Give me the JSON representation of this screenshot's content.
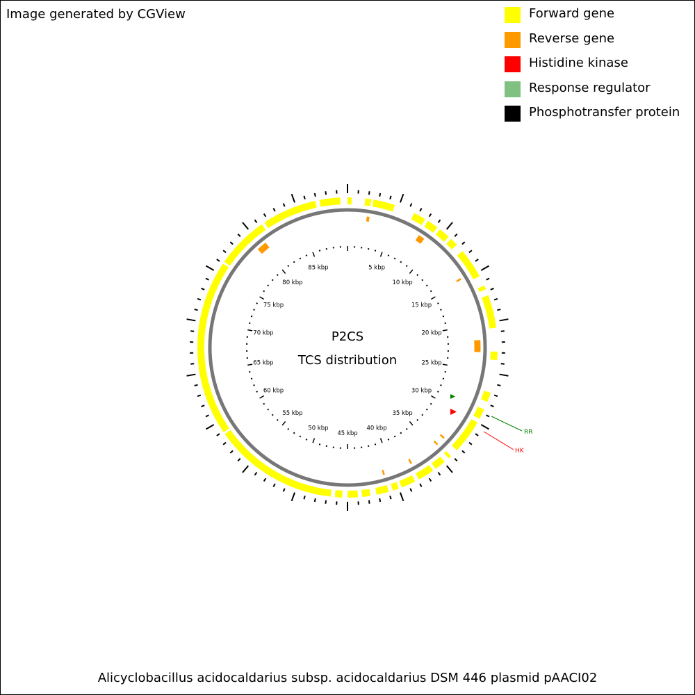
{
  "header_note": "Image generated by CGView",
  "legend": [
    {
      "label": "Forward gene",
      "color": "#ffff00"
    },
    {
      "label": "Reverse gene",
      "color": "#ff9900"
    },
    {
      "label": "Histidine kinase",
      "color": "#ff0000"
    },
    {
      "label": "Response regulator",
      "color": "#80c080"
    },
    {
      "label": "Phosphotransfer protein",
      "color": "#000000"
    }
  ],
  "center": {
    "line1": "P2CS",
    "line2": "TCS distribution"
  },
  "footer_title": "Alicyclobacillus acidocaldarius subsp. acidocaldarius DSM 446 plasmid pAACI02",
  "map": {
    "sequence_length_kbp": 90,
    "tick_labels": [
      "5 kbp",
      "10 kbp",
      "15 kbp",
      "20 kbp",
      "25 kbp",
      "30 kbp",
      "35 kbp",
      "40 kbp",
      "45 kbp",
      "50 kbp",
      "55 kbp",
      "60 kbp",
      "65 kbp",
      "70 kbp",
      "75 kbp",
      "80 kbp",
      "85 kbp"
    ],
    "forward_genes_kbp": [
      [
        0.0,
        0.4
      ],
      [
        1.7,
        2.3
      ],
      [
        2.5,
        4.6
      ],
      [
        6.6,
        7.8
      ],
      [
        8.1,
        9.2
      ],
      [
        9.5,
        10.6
      ],
      [
        10.9,
        11.7
      ],
      [
        12.5,
        15.4
      ],
      [
        16.4,
        16.8
      ],
      [
        17.4,
        20.6
      ],
      [
        22.9,
        23.7
      ],
      [
        26.9,
        27.8
      ],
      [
        28.6,
        29.6
      ],
      [
        30.0,
        33.3
      ],
      [
        34.1,
        34.4
      ],
      [
        34.9,
        36.0
      ],
      [
        36.3,
        37.9
      ],
      [
        38.3,
        39.7
      ],
      [
        40.0,
        40.6
      ],
      [
        41.0,
        42.2
      ],
      [
        42.8,
        43.6
      ],
      [
        44.0,
        45.0
      ],
      [
        45.5,
        46.2
      ],
      [
        46.6,
        58.7
      ],
      [
        58.9,
        76.0
      ],
      [
        76.2,
        81.3
      ],
      [
        81.6,
        86.9
      ],
      [
        87.3,
        89.3
      ]
    ],
    "reverse_genes_kbp": [
      [
        2.1,
        2.4
      ],
      [
        8.1,
        8.8
      ],
      [
        14.6,
        14.8
      ],
      [
        21.7,
        23.0
      ],
      [
        33.2,
        33.4
      ],
      [
        34.2,
        34.4
      ],
      [
        37.7,
        37.9
      ],
      [
        40.9,
        41.1
      ],
      [
        79.4,
        80.5
      ]
    ],
    "callouts": [
      {
        "label": "RR",
        "color": "#008000"
      },
      {
        "label": "HK",
        "color": "#ff0000"
      }
    ]
  }
}
